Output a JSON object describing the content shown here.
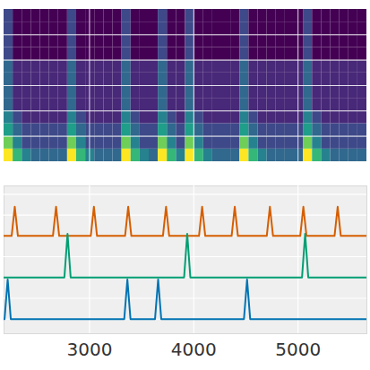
{
  "chart_data": [
    {
      "type": "heatmap",
      "x_edges": [
        2180,
        2267,
        2354,
        2441,
        2528,
        2615,
        2702,
        2789,
        2876,
        2963,
        3050,
        3137,
        3224,
        3311,
        3398,
        3485,
        3572,
        3659,
        3746,
        3833,
        3920,
        4007,
        4094,
        4181,
        4268,
        4355,
        4442,
        4529,
        4616,
        4703,
        4790,
        4877,
        4964,
        5051,
        5138,
        5225,
        5312,
        5399,
        5486,
        5573,
        5660
      ],
      "y_edges": [
        0,
        1,
        2,
        3,
        4,
        5,
        6,
        7,
        8,
        9,
        10,
        11,
        12
      ],
      "cells": [
        [
          9,
          6,
          4,
          3,
          3,
          3,
          3,
          9,
          6,
          4,
          3,
          3,
          3,
          9,
          6,
          4,
          3,
          9,
          6,
          4,
          9,
          6,
          4,
          3,
          3,
          3,
          9,
          6,
          4,
          3,
          3,
          3,
          3,
          9,
          6,
          4,
          3,
          3,
          3,
          3
        ],
        [
          7,
          4,
          2,
          2,
          2,
          2,
          2,
          7,
          4,
          2,
          2,
          2,
          2,
          7,
          4,
          2,
          2,
          7,
          4,
          2,
          7,
          4,
          2,
          2,
          2,
          2,
          7,
          4,
          2,
          2,
          2,
          2,
          2,
          7,
          4,
          2,
          2,
          2,
          2,
          2
        ],
        [
          5,
          3,
          2,
          2,
          2,
          2,
          2,
          5,
          3,
          2,
          2,
          2,
          2,
          5,
          3,
          2,
          2,
          5,
          3,
          2,
          5,
          3,
          2,
          2,
          2,
          2,
          5,
          3,
          2,
          2,
          2,
          2,
          2,
          5,
          3,
          2,
          2,
          2,
          2,
          2
        ],
        [
          4,
          2,
          1,
          1,
          1,
          1,
          1,
          4,
          2,
          1,
          1,
          1,
          1,
          4,
          2,
          1,
          1,
          4,
          2,
          1,
          4,
          2,
          1,
          1,
          1,
          1,
          4,
          2,
          1,
          1,
          1,
          1,
          1,
          4,
          2,
          1,
          1,
          1,
          1,
          1
        ],
        [
          3,
          1,
          1,
          1,
          1,
          1,
          1,
          3,
          1,
          1,
          1,
          1,
          1,
          3,
          1,
          1,
          1,
          3,
          1,
          1,
          3,
          1,
          1,
          1,
          1,
          1,
          3,
          1,
          1,
          1,
          1,
          1,
          1,
          3,
          1,
          1,
          1,
          1,
          1,
          1
        ],
        [
          3,
          1,
          1,
          1,
          1,
          1,
          1,
          3,
          1,
          1,
          1,
          1,
          1,
          3,
          1,
          1,
          1,
          3,
          1,
          1,
          3,
          1,
          1,
          1,
          1,
          1,
          3,
          1,
          1,
          1,
          1,
          1,
          1,
          3,
          1,
          1,
          1,
          1,
          1,
          1
        ],
        [
          3,
          1,
          1,
          1,
          1,
          1,
          1,
          3,
          1,
          1,
          1,
          1,
          1,
          3,
          1,
          1,
          1,
          3,
          1,
          1,
          3,
          1,
          1,
          1,
          1,
          1,
          3,
          1,
          1,
          1,
          1,
          1,
          1,
          3,
          1,
          1,
          1,
          1,
          1,
          1
        ],
        [
          3,
          1,
          1,
          1,
          1,
          1,
          1,
          3,
          1,
          1,
          1,
          1,
          1,
          3,
          1,
          1,
          1,
          3,
          1,
          1,
          3,
          1,
          1,
          1,
          1,
          1,
          3,
          1,
          1,
          1,
          1,
          1,
          1,
          3,
          1,
          1,
          1,
          1,
          1,
          1
        ],
        [
          2,
          0,
          0,
          0,
          0,
          0,
          0,
          2,
          0,
          0,
          0,
          0,
          0,
          2,
          0,
          0,
          0,
          2,
          0,
          0,
          2,
          0,
          0,
          0,
          0,
          0,
          2,
          0,
          0,
          0,
          0,
          0,
          0,
          2,
          0,
          0,
          0,
          0,
          0,
          0
        ],
        [
          2,
          0,
          0,
          0,
          0,
          0,
          0,
          2,
          0,
          0,
          0,
          0,
          0,
          2,
          0,
          0,
          0,
          2,
          0,
          0,
          2,
          0,
          0,
          0,
          0,
          0,
          2,
          0,
          0,
          0,
          0,
          0,
          0,
          2,
          0,
          0,
          0,
          0,
          0,
          0
        ],
        [
          2,
          0,
          0,
          0,
          0,
          0,
          0,
          2,
          0,
          0,
          0,
          0,
          0,
          2,
          0,
          0,
          0,
          2,
          0,
          0,
          2,
          0,
          0,
          0,
          0,
          0,
          2,
          0,
          0,
          0,
          0,
          0,
          0,
          2,
          0,
          0,
          0,
          0,
          0,
          0
        ],
        [
          2,
          0,
          0,
          0,
          0,
          0,
          0,
          2,
          0,
          0,
          0,
          0,
          0,
          2,
          0,
          0,
          0,
          2,
          0,
          0,
          2,
          0,
          0,
          0,
          0,
          0,
          2,
          0,
          0,
          0,
          0,
          0,
          0,
          2,
          0,
          0,
          0,
          0,
          0,
          0
        ]
      ],
      "zlim": [
        0,
        9
      ],
      "xlim": [
        2180,
        5660
      ],
      "xticks": [
        3000,
        4000,
        5000
      ],
      "ylim": [
        0,
        12
      ],
      "yticks": [
        2,
        4,
        6,
        8,
        10
      ],
      "grid": true,
      "tick_labels": false
    },
    {
      "type": "line",
      "series": [
        {
          "color": "#d55e00",
          "x": [
            2180,
            2253,
            2283,
            2313,
            2649,
            2679,
            2709,
            3012,
            3042,
            3072,
            3341,
            3371,
            3401,
            3704,
            3734,
            3764,
            4050,
            4080,
            4110,
            4363,
            4393,
            4423,
            4700,
            4730,
            4760,
            5021,
            5051,
            5081,
            5350,
            5380,
            5410,
            5660
          ],
          "values": [
            2,
            2,
            2.7,
            2,
            2,
            2.7,
            2,
            2,
            2.7,
            2,
            2,
            2.7,
            2,
            2,
            2.7,
            2,
            2,
            2.7,
            2,
            2,
            2.7,
            2,
            2,
            2.7,
            2,
            2,
            2.7,
            2,
            2,
            2.7,
            2,
            2
          ]
        },
        {
          "color": "#029e73",
          "x": [
            2180,
            2759,
            2789,
            2819,
            3907,
            3937,
            3967,
            5038,
            5068,
            5098,
            5660
          ],
          "values": [
            1,
            1,
            2.05,
            1,
            1,
            2.05,
            1,
            1,
            2.05,
            1,
            1
          ]
        },
        {
          "color": "#0173b2",
          "x": [
            2180,
            2185,
            2215,
            2245,
            3333,
            3363,
            3393,
            3628,
            3658,
            3688,
            4481,
            4511,
            4541,
            5660
          ],
          "values": [
            0,
            0,
            0.95,
            0,
            0,
            0.95,
            0,
            0,
            0.95,
            0,
            0,
            0.95,
            0,
            0
          ]
        }
      ],
      "xlim": [
        2180,
        5660
      ],
      "xticks": [
        3000,
        4000,
        5000
      ],
      "ylim": [
        -0.35,
        3.2
      ],
      "yticks": [
        0,
        0.5,
        1,
        1.5,
        2,
        2.5,
        3
      ],
      "grid": true,
      "tick_labels": "x"
    }
  ]
}
